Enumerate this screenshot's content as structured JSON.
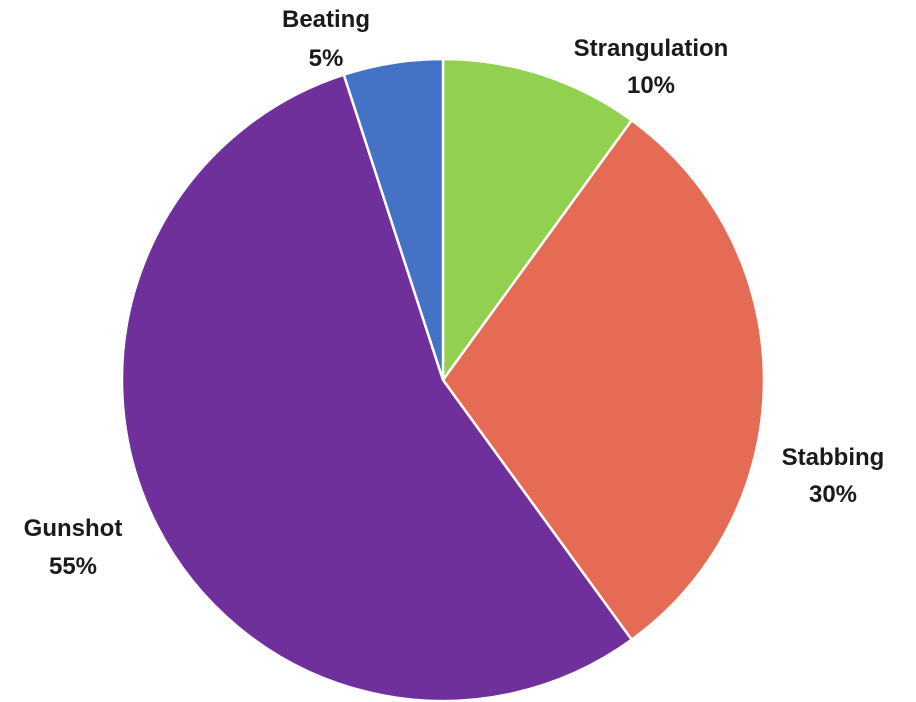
{
  "chart_data": {
    "type": "pie",
    "title": "",
    "start_angle_deg": 0,
    "direction": "clockwise",
    "slices": [
      {
        "label": "Strangulation",
        "value": 10,
        "value_label": "10%",
        "color": "#92d050"
      },
      {
        "label": "Stabbing",
        "value": 30,
        "value_label": "30%",
        "color": "#e56b55"
      },
      {
        "label": "Gunshot",
        "value": 55,
        "value_label": "55%",
        "color": "#70309c"
      },
      {
        "label": "Beating",
        "value": 5,
        "value_label": "5%",
        "color": "#4472c4"
      }
    ]
  }
}
